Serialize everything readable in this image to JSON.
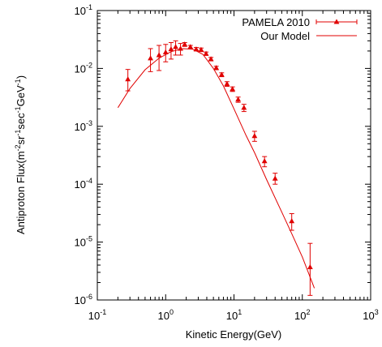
{
  "chart_data": {
    "type": "scatter",
    "title": "",
    "xlabel": "Kinetic Energy(GeV)",
    "ylabel_parts": [
      {
        "t": "Antiproton Flux(m"
      },
      {
        "t": "-2",
        "sup": true
      },
      {
        "t": "sr"
      },
      {
        "t": "-1",
        "sup": true
      },
      {
        "t": "sec"
      },
      {
        "t": "-1",
        "sup": true
      },
      {
        "t": "GeV"
      },
      {
        "t": "-1",
        "sup": true
      },
      {
        "t": ")"
      }
    ],
    "x_scale": "log",
    "y_scale": "log",
    "xlim": [
      0.1,
      1000
    ],
    "ylim": [
      1e-06,
      0.1
    ],
    "x_ticks": [
      {
        "base": "10",
        "exp": "-1",
        "value": 0.1
      },
      {
        "base": "10",
        "exp": "0",
        "value": 1
      },
      {
        "base": "10",
        "exp": "1",
        "value": 10
      },
      {
        "base": "10",
        "exp": "2",
        "value": 100
      },
      {
        "base": "10",
        "exp": "3",
        "value": 1000
      }
    ],
    "y_ticks": [
      {
        "base": "10",
        "exp": "-6",
        "value": 1e-06
      },
      {
        "base": "10",
        "exp": "-5",
        "value": 1e-05
      },
      {
        "base": "10",
        "exp": "-4",
        "value": 0.0001
      },
      {
        "base": "10",
        "exp": "-3",
        "value": 0.001
      },
      {
        "base": "10",
        "exp": "-2",
        "value": 0.01
      },
      {
        "base": "10",
        "exp": "-1",
        "value": 0.1
      }
    ],
    "grid": false,
    "legend_position": "top-right",
    "color": "#e00000",
    "series": [
      {
        "name": "PAMELA 2010",
        "kind": "points-with-errorbars",
        "marker": "triangle",
        "points": [
          {
            "x": 0.28,
            "y": 0.0065,
            "lo": 0.0041,
            "hi": 0.0096
          },
          {
            "x": 0.6,
            "y": 0.015,
            "lo": 0.0088,
            "hi": 0.022
          },
          {
            "x": 0.8,
            "y": 0.017,
            "lo": 0.0092,
            "hi": 0.025
          },
          {
            "x": 1.0,
            "y": 0.019,
            "lo": 0.013,
            "hi": 0.026
          },
          {
            "x": 1.2,
            "y": 0.0215,
            "lo": 0.0145,
            "hi": 0.028
          },
          {
            "x": 1.4,
            "y": 0.0235,
            "lo": 0.017,
            "hi": 0.03
          },
          {
            "x": 1.65,
            "y": 0.022,
            "lo": 0.017,
            "hi": 0.027
          },
          {
            "x": 1.9,
            "y": 0.026,
            "lo": 0.024,
            "hi": 0.028
          },
          {
            "x": 2.3,
            "y": 0.0235,
            "lo": 0.022,
            "hi": 0.025
          },
          {
            "x": 2.8,
            "y": 0.0215,
            "lo": 0.02,
            "hi": 0.023
          },
          {
            "x": 3.3,
            "y": 0.021,
            "lo": 0.0195,
            "hi": 0.0225
          },
          {
            "x": 3.9,
            "y": 0.018,
            "lo": 0.0168,
            "hi": 0.0192
          },
          {
            "x": 4.6,
            "y": 0.0145,
            "lo": 0.0135,
            "hi": 0.0155
          },
          {
            "x": 5.5,
            "y": 0.0102,
            "lo": 0.0095,
            "hi": 0.0109
          },
          {
            "x": 6.6,
            "y": 0.0078,
            "lo": 0.0072,
            "hi": 0.0084
          },
          {
            "x": 7.9,
            "y": 0.0054,
            "lo": 0.0049,
            "hi": 0.0059
          },
          {
            "x": 9.5,
            "y": 0.0044,
            "lo": 0.004,
            "hi": 0.0048
          },
          {
            "x": 11.5,
            "y": 0.0029,
            "lo": 0.0026,
            "hi": 0.0032
          },
          {
            "x": 14.0,
            "y": 0.0021,
            "lo": 0.0018,
            "hi": 0.0024
          },
          {
            "x": 20.0,
            "y": 0.00068,
            "lo": 0.00055,
            "hi": 0.00082
          },
          {
            "x": 28.0,
            "y": 0.00025,
            "lo": 0.0002,
            "hi": 0.0003
          },
          {
            "x": 40.0,
            "y": 0.000125,
            "lo": 0.0001,
            "hi": 0.000155
          },
          {
            "x": 70.0,
            "y": 2.3e-05,
            "lo": 1.6e-05,
            "hi": 3.1e-05
          },
          {
            "x": 130.0,
            "y": 3.7e-06,
            "lo": 1.2e-06,
            "hi": 9.5e-06
          }
        ]
      },
      {
        "name": "Our Model",
        "kind": "line",
        "points": [
          {
            "x": 0.2,
            "y": 0.0021
          },
          {
            "x": 0.3,
            "y": 0.0045
          },
          {
            "x": 0.5,
            "y": 0.0095
          },
          {
            "x": 0.8,
            "y": 0.015
          },
          {
            "x": 1.2,
            "y": 0.0195
          },
          {
            "x": 1.8,
            "y": 0.022
          },
          {
            "x": 2.5,
            "y": 0.0215
          },
          {
            "x": 3.5,
            "y": 0.0175
          },
          {
            "x": 5.0,
            "y": 0.01
          },
          {
            "x": 7.0,
            "y": 0.005
          },
          {
            "x": 10.0,
            "y": 0.002
          },
          {
            "x": 15.0,
            "y": 0.0007
          },
          {
            "x": 20.0,
            "y": 0.00035
          },
          {
            "x": 30.0,
            "y": 0.00012
          },
          {
            "x": 50.0,
            "y": 3.3e-05
          },
          {
            "x": 70.0,
            "y": 1.4e-05
          },
          {
            "x": 100.0,
            "y": 5.5e-06
          },
          {
            "x": 150.0,
            "y": 1.6e-06
          }
        ]
      }
    ]
  }
}
